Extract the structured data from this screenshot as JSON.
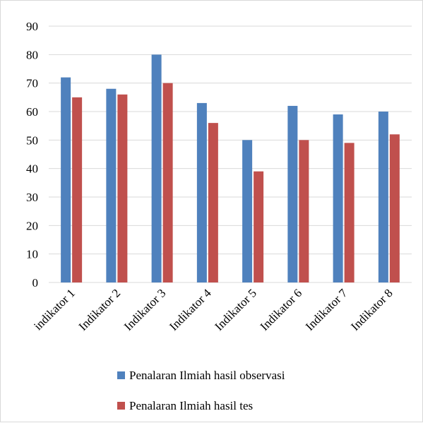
{
  "chart_data": {
    "type": "bar",
    "categories": [
      "indikator 1",
      "Indikator 2",
      "Indikator 3",
      "Indikator 4",
      "Indikator 5",
      "Indikator 6",
      "Indikator 7",
      "Indikator 8"
    ],
    "series": [
      {
        "name": "Penalaran Ilmiah hasil observasi",
        "values": [
          72,
          68,
          80,
          63,
          50,
          62,
          59,
          60
        ],
        "color": "#4f81bd"
      },
      {
        "name": "Penalaran Ilmiah hasil tes",
        "values": [
          65,
          66,
          70,
          56,
          39,
          50,
          49,
          52
        ],
        "color": "#c0504d"
      }
    ],
    "ylim": [
      0,
      90
    ],
    "yticks": [
      0,
      10,
      20,
      30,
      40,
      50,
      60,
      70,
      80,
      90
    ],
    "grid": true,
    "legend": "bottom",
    "gridline_color": "#d9d9d9"
  }
}
